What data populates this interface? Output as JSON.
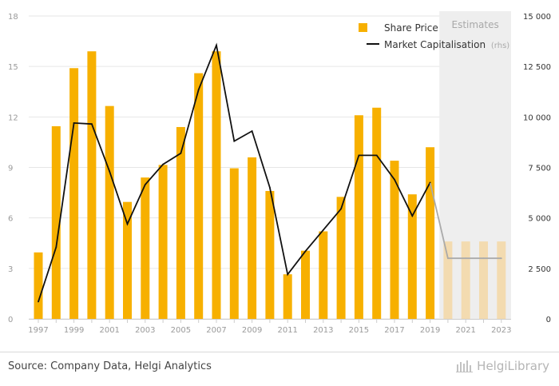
{
  "chart_data": {
    "type": "bar",
    "categories": [
      "1997",
      "1998",
      "1999",
      "2000",
      "2001",
      "2002",
      "2003",
      "2004",
      "2005",
      "2006",
      "2007",
      "2008",
      "2009",
      "2010",
      "2011",
      "2012",
      "2013",
      "2014",
      "2015",
      "2016",
      "2017",
      "2018",
      "2019",
      "2020",
      "2021",
      "2022",
      "2023"
    ],
    "x_tick_labels": [
      "1997",
      "1999",
      "2001",
      "2003",
      "2005",
      "2007",
      "2009",
      "2011",
      "2013",
      "2015",
      "2017",
      "2019",
      "2021",
      "2023"
    ],
    "series": [
      {
        "name": "Share Price",
        "type": "bar",
        "axis": "left",
        "color": "#f7b000",
        "estimate_color": "#f3dbb0",
        "values": [
          3.95,
          11.45,
          14.9,
          15.9,
          12.65,
          6.95,
          8.4,
          9.15,
          11.4,
          14.6,
          15.9,
          8.95,
          9.6,
          7.6,
          2.65,
          4.05,
          5.2,
          7.25,
          12.1,
          12.55,
          9.4,
          7.4,
          10.2,
          4.6,
          4.6,
          4.6,
          4.6
        ]
      },
      {
        "name": "Market Capitalisation",
        "name_suffix": "(rhs)",
        "type": "line",
        "axis": "right",
        "color": "#111111",
        "estimate_color": "#aaaaaa",
        "values": [
          850,
          3550,
          9700,
          9650,
          7300,
          4700,
          6650,
          7650,
          8200,
          11350,
          13550,
          8800,
          9300,
          6500,
          2200,
          3350,
          4400,
          5450,
          8100,
          8100,
          6900,
          5100,
          6750,
          3000,
          3000,
          3000,
          3000
        ]
      }
    ],
    "estimates_from": "2020",
    "estimates_label": "Estimates",
    "y_left": {
      "ylim": [
        0,
        18
      ],
      "ticks": [
        "0",
        "3",
        "6",
        "9",
        "12",
        "15",
        "18"
      ]
    },
    "y_right": {
      "ylim": [
        0,
        15000
      ],
      "ticks": [
        "0",
        "2 500",
        "5 000",
        "7 500",
        "10 000",
        "12 500",
        "15 000"
      ]
    },
    "legend_position": "top-right",
    "grid": true
  },
  "footer": {
    "source": "Source: Company Data, Helgi Analytics",
    "logo": "HelgiLibrary"
  }
}
